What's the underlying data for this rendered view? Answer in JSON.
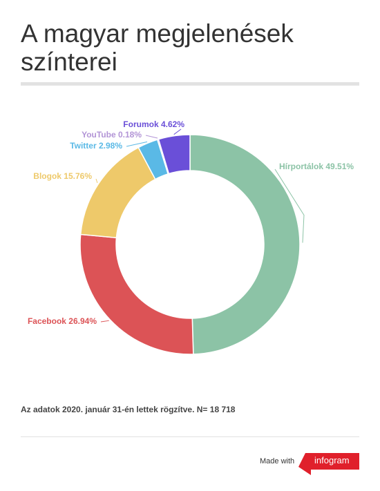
{
  "title": "A magyar megjelenések színterei",
  "note": "Az adatok 2020. január 31-én lettek rögzítve. N= 18 718",
  "footer": {
    "made_with": "Made with",
    "brand": "infogram",
    "brand_color": "#e0202b"
  },
  "chart_data": {
    "type": "pie",
    "donut": true,
    "categories": [
      "Hírportálok",
      "Facebook",
      "Blogok",
      "Twitter",
      "YouTube",
      "Forumok"
    ],
    "values": [
      49.51,
      26.94,
      15.76,
      2.98,
      0.18,
      4.62
    ],
    "labels": [
      "Hírportálok 49.51%",
      "Facebook 26.94%",
      "Blogok 15.76%",
      "Twitter 2.98%",
      "YouTube 0.18%",
      "Forumok 4.62%"
    ],
    "colors": [
      "#8cc3a6",
      "#dc5356",
      "#eec96a",
      "#5ab9e6",
      "#b294d6",
      "#6a4fd8"
    ],
    "title": "",
    "legend": "none"
  }
}
